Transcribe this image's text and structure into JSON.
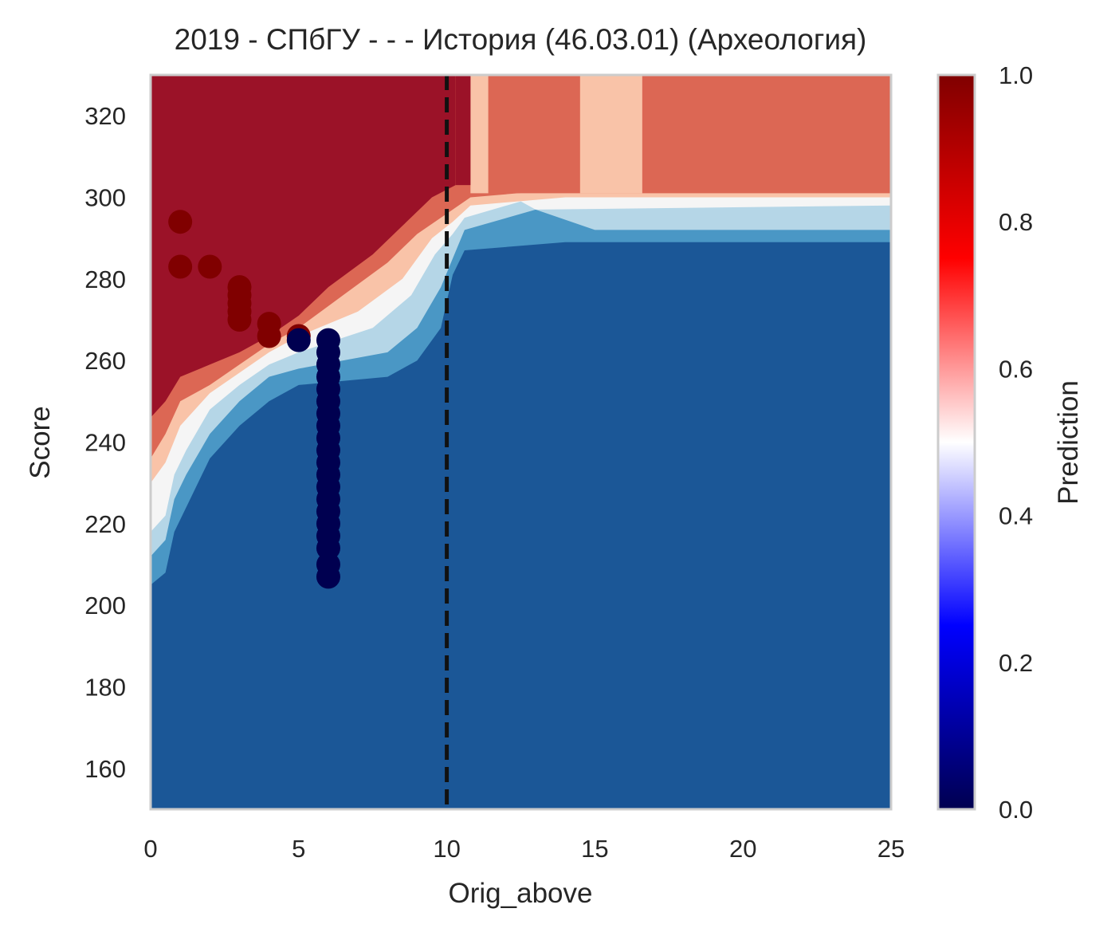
{
  "chart_data": {
    "type": "heatmap",
    "title": "2019 - СПбГУ - - - История (46.03.01) (Археология)",
    "xlabel": "Orig_above",
    "ylabel": "Score",
    "xlim": [
      0,
      25
    ],
    "ylim": [
      150,
      330
    ],
    "x_ticks": [
      "0",
      "5",
      "10",
      "15",
      "20",
      "25"
    ],
    "y_ticks": [
      "160",
      "180",
      "200",
      "220",
      "240",
      "260",
      "280",
      "300",
      "320"
    ],
    "grid": false,
    "threshold_line": {
      "x": 10,
      "style": "dashed"
    },
    "colorbar": {
      "label": "Prediction",
      "range": [
        0,
        1
      ],
      "ticks": [
        "0.0",
        "0.2",
        "0.4",
        "0.6",
        "0.8",
        "1.0"
      ],
      "colors": [
        "#000050",
        "#0000ff",
        "#ffffff",
        "#ff0000",
        "#800000"
      ]
    },
    "contour_levels": [
      {
        "level": "0.0-0.2",
        "color": "#1b5797"
      },
      {
        "level": "0.2-0.3",
        "color": "#4a97c5"
      },
      {
        "level": "0.3-0.4",
        "color": "#b5d6e7"
      },
      {
        "level": "0.4-0.6",
        "color": "#f5f5f5"
      },
      {
        "level": "0.6-0.7",
        "color": "#f9c3a8"
      },
      {
        "level": "0.7-0.9",
        "color": "#dc6754"
      },
      {
        "level": "0.9-1.0",
        "color": "#9b1228"
      }
    ],
    "series": [
      {
        "class": 1,
        "color": "#800000",
        "points": [
          [
            1,
            294
          ],
          [
            1,
            283
          ],
          [
            2,
            283
          ],
          [
            3,
            278
          ],
          [
            3,
            276
          ],
          [
            3,
            274
          ],
          [
            3,
            272
          ],
          [
            3,
            270
          ],
          [
            4,
            269
          ],
          [
            4,
            266
          ],
          [
            5,
            266
          ]
        ]
      },
      {
        "class": 0,
        "color": "#000050",
        "points": [
          [
            5,
            265
          ],
          [
            6,
            265
          ],
          [
            6,
            262
          ],
          [
            6,
            259
          ],
          [
            6,
            256
          ],
          [
            6,
            253
          ],
          [
            6,
            250
          ],
          [
            6,
            247
          ],
          [
            6,
            244
          ],
          [
            6,
            241
          ],
          [
            6,
            238
          ],
          [
            6,
            235
          ],
          [
            6,
            232
          ],
          [
            6,
            229
          ],
          [
            6,
            226
          ],
          [
            6,
            223
          ],
          [
            6,
            220
          ],
          [
            6,
            217
          ],
          [
            6,
            214
          ],
          [
            6,
            210
          ],
          [
            6,
            207
          ]
        ]
      }
    ]
  }
}
